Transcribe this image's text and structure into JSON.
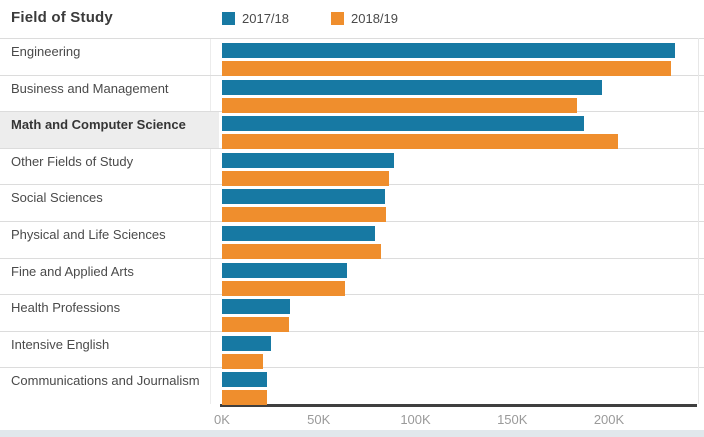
{
  "header": {
    "title": "Field of Study",
    "legend": [
      {
        "label": "2017/18",
        "color": "#1779A3"
      },
      {
        "label": "2018/19",
        "color": "#EF8E2D"
      }
    ]
  },
  "chart_data": {
    "type": "bar",
    "orientation": "horizontal",
    "title": "Field of Study",
    "categories": [
      "Engineering",
      "Business and Management",
      "Math and Computer Science",
      "Other Fields of Study",
      "Social Sciences",
      "Physical and Life Sciences",
      "Fine and Applied Arts",
      "Health Professions",
      "Intensive English",
      "Communications and Journalism"
    ],
    "series": [
      {
        "name": "2017/18",
        "color": "#1779A3",
        "values": [
          234000,
          196500,
          187000,
          89000,
          84000,
          79000,
          64500,
          35000,
          25500,
          23000
        ]
      },
      {
        "name": "2018/19",
        "color": "#EF8E2D",
        "values": [
          232000,
          183500,
          204500,
          86500,
          85000,
          82000,
          63500,
          34500,
          21000,
          23500
        ]
      }
    ],
    "x_ticks": [
      "0K",
      "50K",
      "100K",
      "150K",
      "200K"
    ],
    "x_tick_values": [
      0,
      50000,
      100000,
      150000,
      200000
    ],
    "xlim": [
      0,
      247000
    ],
    "ylabel": "",
    "xlabel": "",
    "grid": false,
    "legend_position": "top",
    "highlighted_category": "Math and Computer Science"
  },
  "style": {
    "axis_line_color": "#3f3f3f",
    "separator_color": "#dcdcdc",
    "highlight_bg": "#ededed",
    "tick_label_color": "#9a9a9a",
    "bottom_strip_color": "#e1e8ec"
  }
}
